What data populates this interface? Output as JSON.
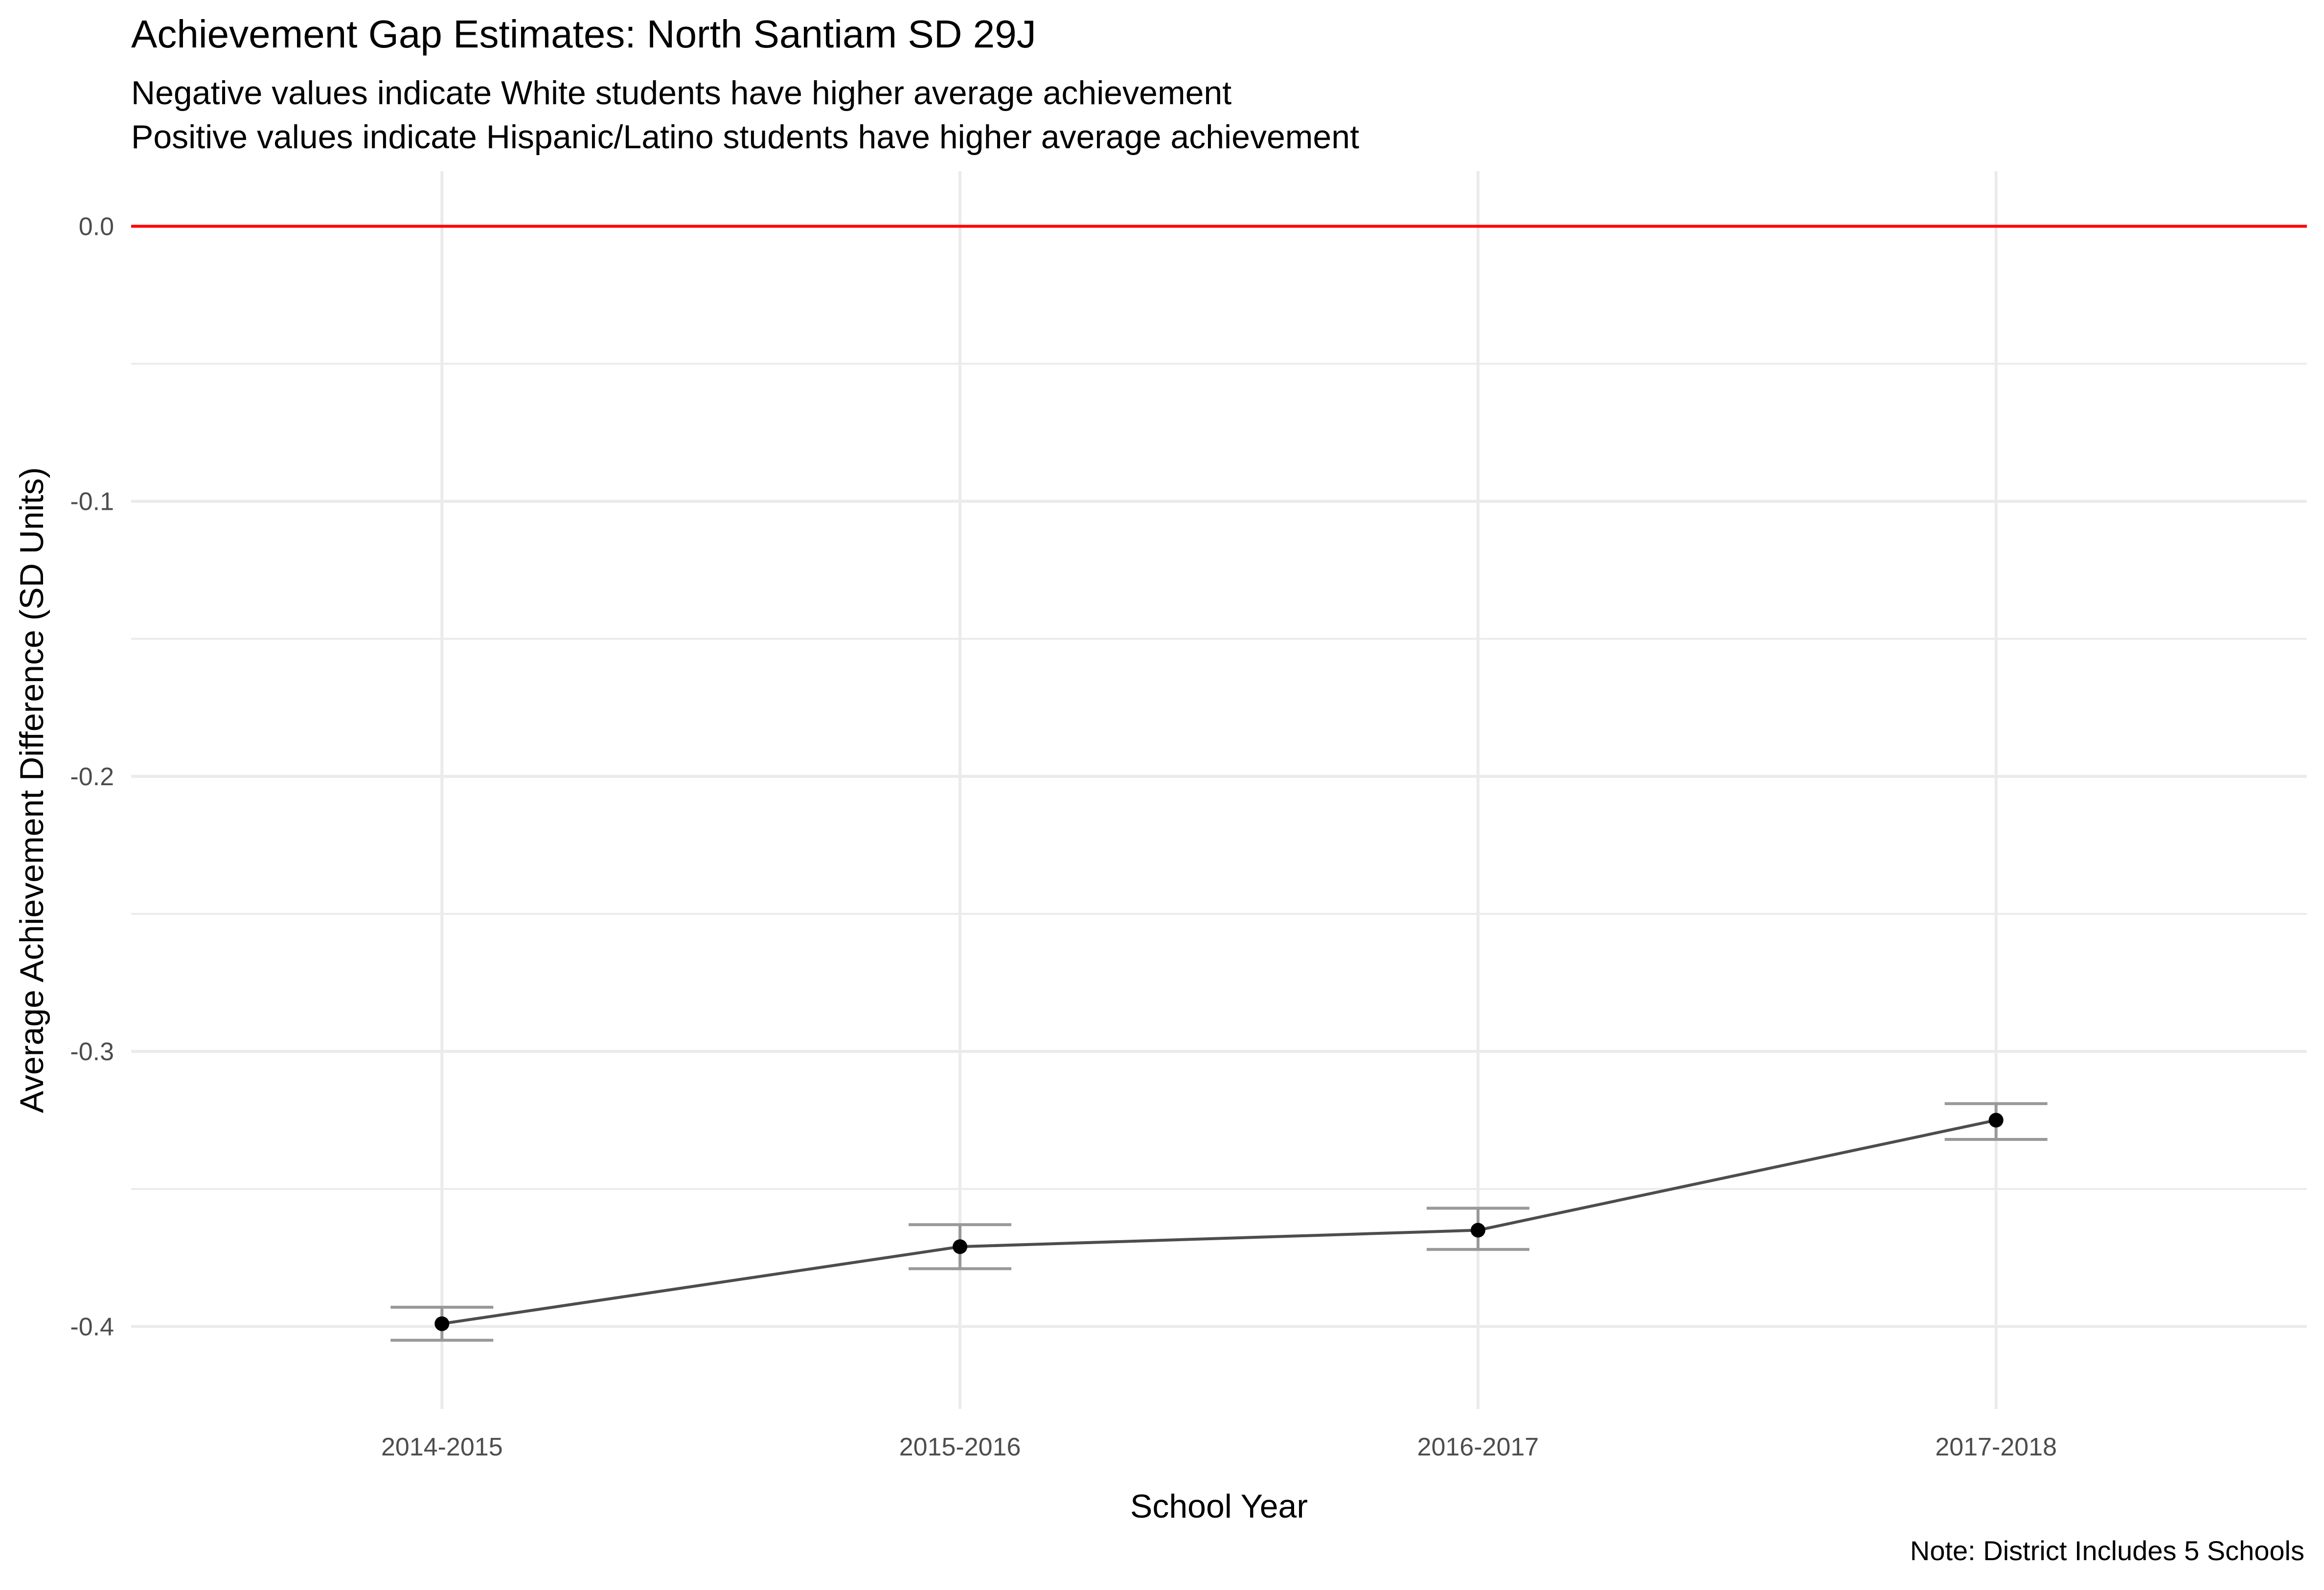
{
  "chart_data": {
    "type": "line",
    "title": "Achievement Gap Estimates: North Santiam SD 29J",
    "subtitle": [
      "Negative values indicate White students have higher average achievement",
      "Positive values indicate Hispanic/Latino students have higher average achievement"
    ],
    "caption": "Note: District Includes 5 Schools",
    "xlabel": "School Year",
    "ylabel": "Average Achievement Difference (SD Units)",
    "categories": [
      "2014-2015",
      "2015-2016",
      "2016-2017",
      "2017-2018"
    ],
    "values": [
      -0.399,
      -0.371,
      -0.365,
      -0.325
    ],
    "error_low": [
      -0.405,
      -0.379,
      -0.372,
      -0.332
    ],
    "error_high": [
      -0.393,
      -0.363,
      -0.357,
      -0.319
    ],
    "reference_line": {
      "y": 0,
      "color": "#ff0000"
    },
    "yticks": [
      0,
      -0.1,
      -0.2,
      -0.3,
      -0.4
    ],
    "ytick_labels": [
      "0.0",
      "-0.1",
      "-0.2",
      "-0.3",
      "-0.4"
    ],
    "ylim": [
      -0.43,
      0.02
    ],
    "grid": true,
    "colors": {
      "line": "#4d4d4d",
      "point": "#000000",
      "errorbar": "#999999",
      "grid": "#ebebeb"
    }
  }
}
